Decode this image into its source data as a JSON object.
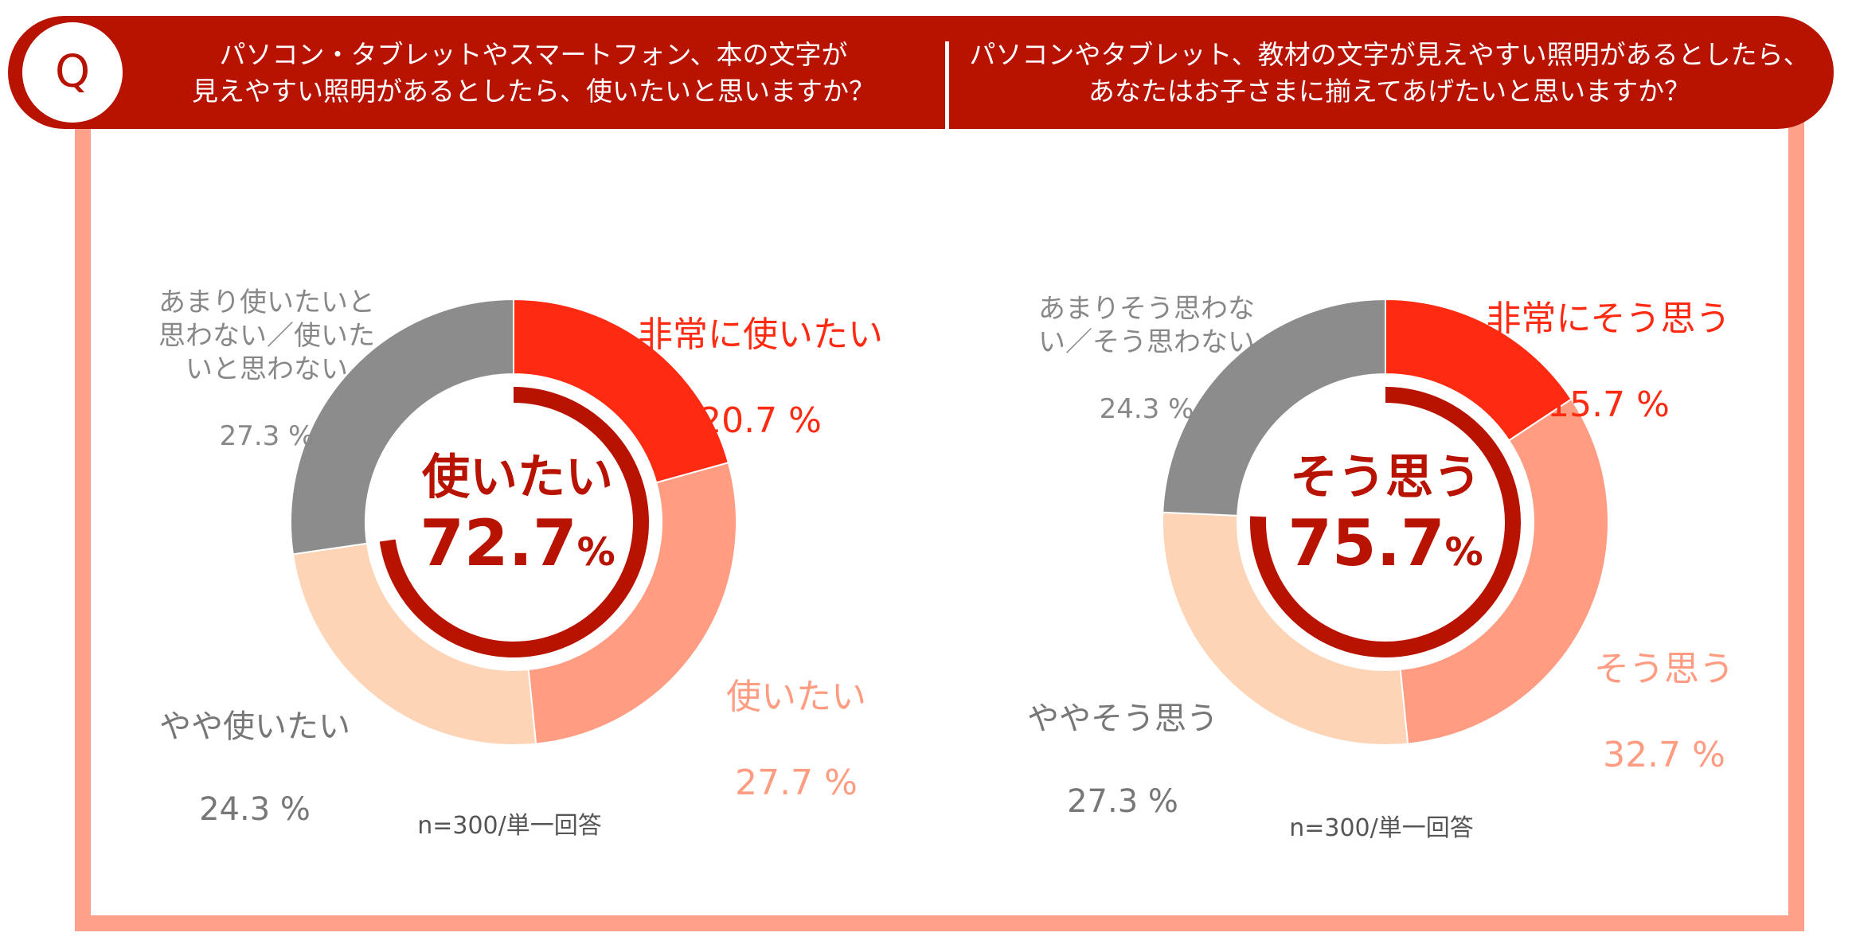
{
  "header": {
    "q_mark": "Q",
    "question_left": "パソコン・タブレットやスマートフォン、本の文字が\n見えやすい照明があるとしたら、使いたいと思いますか？",
    "question_right": "パソコンやタブレット、教材の文字が見えやすい照明があるとしたら、\nあなたはお子さまに揃えてあげたいと思いますか？"
  },
  "chart_data": [
    {
      "type": "pie",
      "categories": [
        "非常に使いたい",
        "使いたい",
        "やや使いたい",
        "あまり使いたいと思わない／使いたいと思わない"
      ],
      "values": [
        20.7,
        27.7,
        24.3,
        27.3
      ],
      "colors": [
        "#ff2a12",
        "#ff9c82",
        "#fdd4b6",
        "#8c8c8c"
      ],
      "labels": {
        "s0_name": "非常に使いたい",
        "s0_value": "20.7 %",
        "s1_name": "使いたい",
        "s1_value": "27.7 %",
        "s2_name": "やや使いたい",
        "s2_value": "24.3 %",
        "s3_name": "あまり使いたいと\n思わない／使いた\nいと思わない",
        "s3_value": "27.3 %"
      },
      "summary_title": "使いたい",
      "summary_value": "72.7",
      "summary_unit": "%",
      "summary_fraction": 0.727,
      "note": "n=300/単一回答"
    },
    {
      "type": "pie",
      "categories": [
        "非常にそう思う",
        "そう思う",
        "ややそう思う",
        "あまりそう思わない／そう思わない"
      ],
      "values": [
        15.7,
        32.7,
        27.3,
        24.3
      ],
      "colors": [
        "#ff2a12",
        "#ff9c82",
        "#fdd4b6",
        "#8c8c8c"
      ],
      "labels": {
        "s0_name": "非常にそう思う",
        "s0_value": "15.7 %",
        "s1_name": "そう思う",
        "s1_value": "32.7 %",
        "s2_name": "ややそう思う",
        "s2_value": "27.3 %",
        "s3_name": "あまりそう思わな\nい／そう思わない",
        "s3_value": "24.3 %"
      },
      "summary_title": "そう思う",
      "summary_value": "75.7",
      "summary_unit": "%",
      "summary_fraction": 0.757,
      "note": "n=300/単一回答"
    }
  ]
}
